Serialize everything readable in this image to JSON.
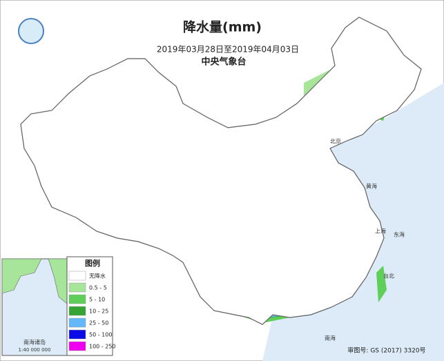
{
  "header": {
    "title": "降水量(mm)",
    "period": "2019年03月28日至2019年04月03日",
    "agency": "中央气象台"
  },
  "legend": {
    "title": "图例",
    "items": [
      {
        "label": "无降水",
        "color": "#ffffff"
      },
      {
        "label": "0.5 - 5",
        "color": "#a6e59a"
      },
      {
        "label": "5 - 10",
        "color": "#5fcf5a"
      },
      {
        "label": "10 - 25",
        "color": "#36a336"
      },
      {
        "label": "25 - 50",
        "color": "#62b8fb"
      },
      {
        "label": "50 - 100",
        "color": "#0a0ae6"
      },
      {
        "label": "100 - 250",
        "color": "#f000f0"
      }
    ]
  },
  "inset": {
    "title": "南海诸岛",
    "scale": "1:40 000 000"
  },
  "places": [
    "北京",
    "上海",
    "台北",
    "东海",
    "黄海",
    "南海"
  ],
  "footer": {
    "approval": "审图号: GS (2017) 3320号"
  }
}
